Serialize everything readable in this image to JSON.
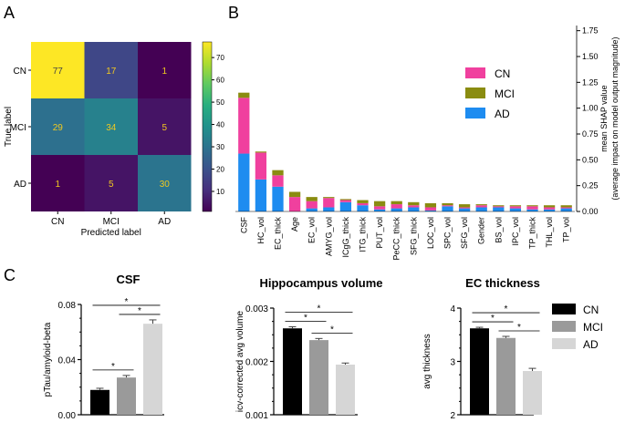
{
  "panel_labels": [
    "A",
    "B",
    "C"
  ],
  "colors": {
    "CN_shap": "#f0409e",
    "MCI_shap": "#8a8c10",
    "AD_shap": "#1e8cf0",
    "CN_bar": "#000000",
    "MCI_bar": "#9a9a9a",
    "AD_bar": "#d6d6d6",
    "cm_low": "#440154",
    "cm_high": "#fde725"
  },
  "chart_data": [
    {
      "type": "heatmap",
      "id": "confusion_matrix",
      "rows": [
        "CN",
        "MCI",
        "AD"
      ],
      "cols": [
        "CN",
        "MCI",
        "AD"
      ],
      "values": [
        [
          77,
          17,
          1
        ],
        [
          29,
          34,
          5
        ],
        [
          1,
          5,
          30
        ]
      ],
      "xlabel": "Predicted label",
      "ylabel": "True label",
      "colorbar_range": [
        1,
        77
      ],
      "colorbar_ticks": [
        10,
        20,
        30,
        40,
        50,
        60,
        70
      ]
    },
    {
      "type": "bar",
      "id": "shap",
      "stacked": true,
      "categories": [
        "CSF",
        "HC_vol",
        "EC_thick",
        "Age",
        "EC_vol",
        "AMYG_vol",
        "ICgG_thick",
        "ITG_thick",
        "PUT_vol",
        "PeCC_thick",
        "SFG_thick",
        "LOC_vol",
        "SPC_vol",
        "SFG_vol",
        "Gender",
        "BS_vol",
        "IPC_vol",
        "TP_thick",
        "THL_vol",
        "TP_vol"
      ],
      "series": [
        {
          "name": "AD",
          "values": [
            0.56,
            0.31,
            0.24,
            0.0,
            0.03,
            0.04,
            0.09,
            0.06,
            0.02,
            0.03,
            0.04,
            0.01,
            0.05,
            0.03,
            0.04,
            0.04,
            0.03,
            0.02,
            0.02,
            0.03
          ]
        },
        {
          "name": "CN",
          "values": [
            0.54,
            0.26,
            0.11,
            0.14,
            0.07,
            0.09,
            0.02,
            0.02,
            0.03,
            0.04,
            0.02,
            0.03,
            0.01,
            0.01,
            0.02,
            0.01,
            0.02,
            0.03,
            0.02,
            0.01
          ]
        },
        {
          "name": "MCI",
          "values": [
            0.05,
            0.01,
            0.05,
            0.05,
            0.04,
            0.01,
            0.01,
            0.03,
            0.05,
            0.03,
            0.03,
            0.04,
            0.02,
            0.03,
            0.01,
            0.01,
            0.01,
            0.01,
            0.02,
            0.02
          ]
        }
      ],
      "legend": [
        "CN",
        "MCI",
        "AD"
      ],
      "legend_position": "top-right",
      "ylabel": "mean SHAP value (average impact on model output magnitude)",
      "ylabel_lines": [
        "mean SHAP value",
        "(average impact on model output magnitude)"
      ],
      "ylim": [
        0,
        1.8
      ],
      "yticks": [
        "0.00",
        "0.25",
        "0.50",
        "0.75",
        "1.00",
        "1.25",
        "1.50",
        "1.75"
      ],
      "yaxis_side": "right"
    },
    {
      "type": "bar",
      "id": "csf",
      "title": "CSF",
      "categories": [
        "CN",
        "MCI",
        "AD"
      ],
      "values": [
        0.018,
        0.027,
        0.066
      ],
      "errors": [
        0.0012,
        0.0015,
        0.0028
      ],
      "ylabel": "pTau/amyloid-beta",
      "ylim": [
        0,
        0.08
      ],
      "yticks": [
        "0.00",
        "0.04",
        "0.08"
      ],
      "significance": [
        {
          "from": 0,
          "to": 1,
          "label": "*"
        },
        {
          "from": 1,
          "to": 2,
          "label": "*"
        },
        {
          "from": 0,
          "to": 2,
          "label": "*"
        }
      ]
    },
    {
      "type": "bar",
      "id": "hippocampus",
      "title": "Hippocampus volume",
      "categories": [
        "CN",
        "MCI",
        "AD"
      ],
      "values": [
        0.00262,
        0.0024,
        0.00194
      ],
      "errors": [
        3e-05,
        3e-05,
        3e-05
      ],
      "ylabel": "icv-corrected avg volume",
      "ylim": [
        0.001,
        0.003
      ],
      "yticks": [
        "0.001",
        "0.002",
        "0.003"
      ],
      "significance": [
        {
          "from": 0,
          "to": 1,
          "label": "*"
        },
        {
          "from": 1,
          "to": 2,
          "label": "*"
        },
        {
          "from": 0,
          "to": 2,
          "label": "*"
        }
      ]
    },
    {
      "type": "bar",
      "id": "ec_thickness",
      "title": "EC thickness",
      "categories": [
        "CN",
        "MCI",
        "AD"
      ],
      "values": [
        3.62,
        3.44,
        2.82
      ],
      "errors": [
        0.02,
        0.03,
        0.05
      ],
      "ylabel": "avg thickness",
      "ylim": [
        2,
        4
      ],
      "yticks": [
        "2",
        "3",
        "4"
      ],
      "significance": [
        {
          "from": 0,
          "to": 1,
          "label": "*"
        },
        {
          "from": 1,
          "to": 2,
          "label": "*"
        },
        {
          "from": 0,
          "to": 2,
          "label": "*"
        }
      ]
    }
  ],
  "group_legend": [
    "CN",
    "MCI",
    "AD"
  ]
}
